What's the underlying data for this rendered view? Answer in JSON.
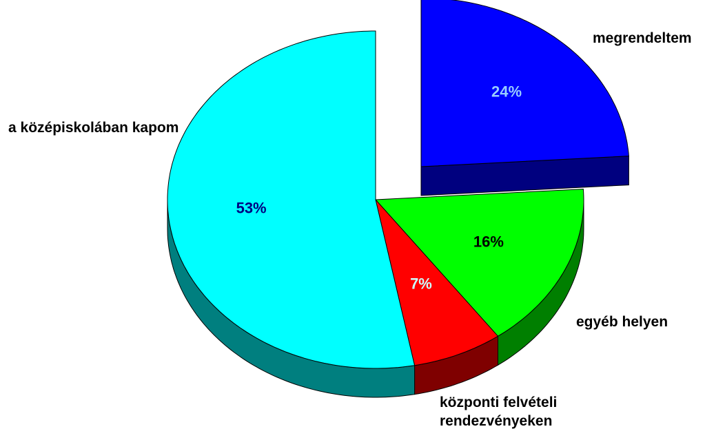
{
  "chart_data": {
    "type": "pie3d",
    "categories": [
      "megrendeltem",
      "egyéb helyen",
      "központi felvételi rendezvényeken",
      "a középiskolában kapom"
    ],
    "values": [
      24,
      16,
      7,
      53
    ],
    "value_labels": [
      "24%",
      "16%",
      "7%",
      "53%"
    ],
    "colors": [
      "#0000ff",
      "#00ff00",
      "#ff0000",
      "#00ffff"
    ],
    "label_colors": [
      "#99ccff",
      "#000000",
      "#ccffff",
      "#000080"
    ]
  }
}
